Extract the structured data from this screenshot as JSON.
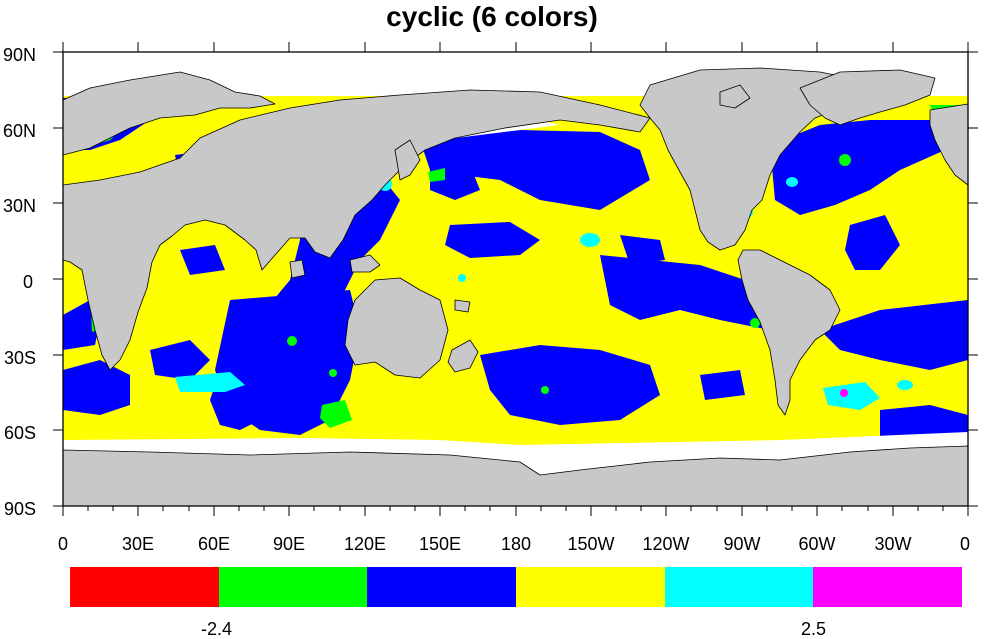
{
  "title": "cyclic (6 colors)",
  "map": {
    "x_ticks": [
      "0",
      "30E",
      "60E",
      "90E",
      "120E",
      "150E",
      "180",
      "150W",
      "120W",
      "90W",
      "60W",
      "30W",
      "0"
    ],
    "y_ticks": [
      "90N",
      "60N",
      "30N",
      "0",
      "30S",
      "60S",
      "90S"
    ],
    "colors": {
      "land": "#c8c8c8",
      "missing": "#ffffff",
      "ocean_base": "#ffff00"
    },
    "fill_classes": [
      "red",
      "green",
      "blue",
      "yellow",
      "cyan",
      "magenta"
    ]
  },
  "colorbar": {
    "colors": [
      "#ff0000",
      "#00ff00",
      "#0000ff",
      "#ffff00",
      "#00ffff",
      "#ff00ff"
    ],
    "labels": [
      "-2.4",
      "2.5"
    ]
  }
}
